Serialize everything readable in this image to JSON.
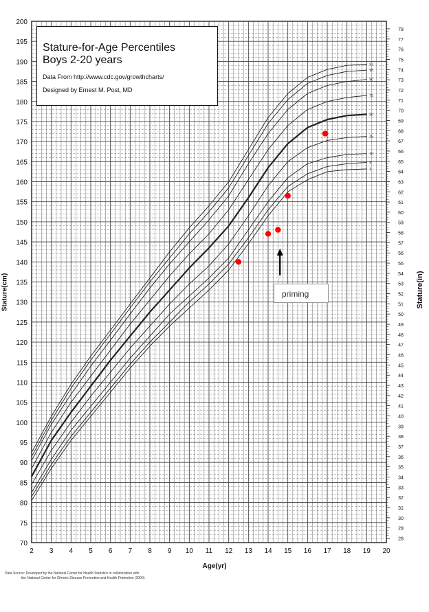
{
  "legend": {
    "title_line1": "Stature-for-Age Percentiles",
    "title_line2": "Boys 2-20 years",
    "source_line": "Data From http://www.cdc.gov/growthcharts/",
    "designer_line": "Designed by Ernest M. Post, MD"
  },
  "annotation": {
    "label": "priming"
  },
  "axes": {
    "x_title": "Age(yr)",
    "y_left_title": "Stature(cm)",
    "y_right_title": "Stature(in)"
  },
  "footer": {
    "line1": "Data Source: Developed by the National Center for Health Statistics in collaboration with",
    "line2": "the National Center for Chronic Disease Prevention and Health Promotion (2000)."
  },
  "colors": {
    "points": "#ff0000",
    "curves": "#222222",
    "grid": "#444444"
  },
  "chart_data": {
    "type": "line",
    "title": "Stature-for-Age Percentiles",
    "subtitle": "Boys 2-20 years",
    "xlabel": "Age(yr)",
    "ylabel": "Stature(cm)",
    "y2label": "Stature(in)",
    "xlim": [
      2,
      20
    ],
    "ylim": [
      70,
      200
    ],
    "y2lim": [
      28,
      78
    ],
    "x_ticks": [
      2,
      3,
      4,
      5,
      6,
      7,
      8,
      9,
      10,
      11,
      12,
      13,
      14,
      15,
      16,
      17,
      18,
      19,
      20
    ],
    "y_ticks": [
      70,
      75,
      80,
      85,
      90,
      95,
      100,
      105,
      110,
      115,
      120,
      125,
      130,
      135,
      140,
      145,
      150,
      155,
      160,
      165,
      170,
      175,
      180,
      185,
      190,
      195,
      200
    ],
    "y2_ticks": [
      28,
      29,
      30,
      31,
      32,
      33,
      34,
      35,
      36,
      37,
      38,
      39,
      40,
      41,
      42,
      43,
      44,
      45,
      46,
      47,
      48,
      49,
      50,
      51,
      52,
      53,
      54,
      55,
      56,
      57,
      58,
      59,
      60,
      61,
      62,
      63,
      64,
      65,
      66,
      67,
      68,
      69,
      70,
      71,
      72,
      73,
      74,
      75,
      76,
      77,
      78
    ],
    "grid": true,
    "ages": [
      2,
      3,
      4,
      5,
      6,
      7,
      8,
      9,
      10,
      11,
      12,
      13,
      14,
      15,
      16,
      17,
      18,
      19
    ],
    "series": [
      {
        "name": "3",
        "values": [
          80.5,
          88.5,
          95.5,
          101.5,
          107.5,
          113.5,
          119.0,
          124.0,
          128.5,
          133.0,
          138.0,
          144.5,
          151.5,
          157.5,
          160.5,
          162.5,
          163.0,
          163.2
        ]
      },
      {
        "name": "5",
        "values": [
          81.5,
          89.5,
          96.5,
          102.5,
          108.5,
          114.5,
          120.0,
          125.0,
          130.0,
          134.5,
          139.5,
          146.0,
          153.0,
          158.8,
          162.0,
          163.8,
          164.5,
          164.8
        ]
      },
      {
        "name": "10",
        "values": [
          82.5,
          90.8,
          98.0,
          104.0,
          110.0,
          116.0,
          121.5,
          127.0,
          131.5,
          136.0,
          141.0,
          148.0,
          155.0,
          161.0,
          164.5,
          166.0,
          166.8,
          167.0
        ]
      },
      {
        "name": "25",
        "values": [
          84.5,
          93.0,
          100.0,
          106.5,
          112.5,
          118.5,
          124.0,
          129.5,
          134.5,
          139.0,
          144.5,
          151.5,
          159.0,
          165.0,
          168.5,
          170.3,
          171.0,
          171.3
        ]
      },
      {
        "name": "50",
        "values": [
          86.5,
          95.5,
          102.5,
          109.0,
          115.5,
          121.5,
          127.5,
          133.0,
          138.5,
          143.5,
          149.0,
          156.0,
          163.5,
          169.5,
          173.5,
          175.5,
          176.5,
          176.8
        ]
      },
      {
        "name": "75",
        "values": [
          88.5,
          97.5,
          105.0,
          111.5,
          118.0,
          124.5,
          130.5,
          136.5,
          142.0,
          147.0,
          153.0,
          160.5,
          168.0,
          174.0,
          178.0,
          180.0,
          181.0,
          181.5
        ]
      },
      {
        "name": "90",
        "values": [
          90.5,
          99.5,
          107.0,
          114.0,
          120.5,
          127.0,
          133.5,
          139.5,
          145.0,
          150.5,
          156.5,
          164.5,
          172.0,
          178.0,
          182.0,
          184.0,
          185.0,
          185.5
        ]
      },
      {
        "name": "95",
        "values": [
          91.5,
          100.5,
          108.5,
          115.5,
          122.0,
          128.5,
          135.0,
          141.0,
          147.0,
          152.5,
          158.5,
          166.5,
          174.5,
          180.5,
          184.5,
          186.5,
          187.5,
          187.8
        ]
      },
      {
        "name": "97",
        "values": [
          92.5,
          101.5,
          109.5,
          116.5,
          123.0,
          129.5,
          136.0,
          142.5,
          148.5,
          154.0,
          160.0,
          168.0,
          176.0,
          182.0,
          186.0,
          188.0,
          189.0,
          189.3
        ]
      }
    ],
    "points": [
      {
        "x": 12.5,
        "y": 140
      },
      {
        "x": 14.0,
        "y": 147
      },
      {
        "x": 14.5,
        "y": 148
      },
      {
        "x": 15.0,
        "y": 156.5
      },
      {
        "x": 16.9,
        "y": 172
      }
    ],
    "arrow_x": 14.6
  }
}
